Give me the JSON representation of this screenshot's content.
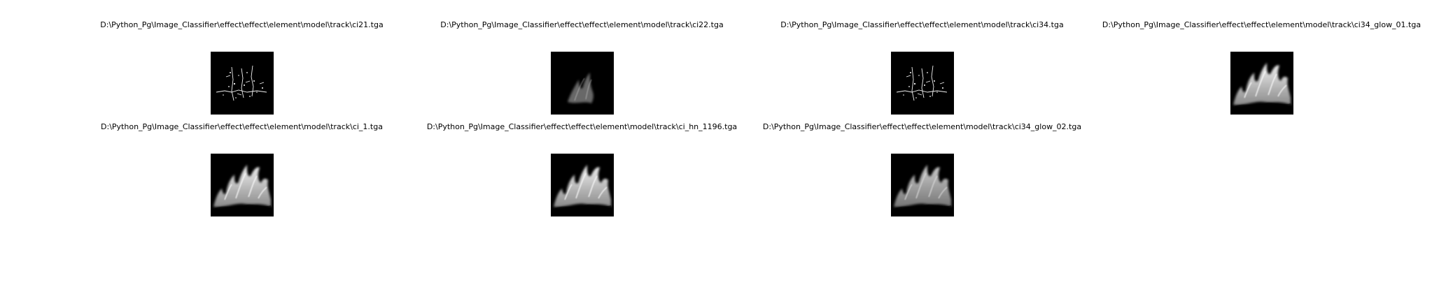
{
  "figure": {
    "panels": [
      {
        "title": "D:\\Python_Pg\\Image_Classifier\\effect\\effect\\element\\model\\track\\ci21.tga",
        "image": "sparse-streak-texture"
      },
      {
        "title": "D:\\Python_Pg\\Image_Classifier\\effect\\effect\\element\\model\\track\\ci22.tga",
        "image": "faint-flame-texture"
      },
      {
        "title": "D:\\Python_Pg\\Image_Classifier\\effect\\effect\\element\\model\\track\\ci34.tga",
        "image": "sparse-streak-texture"
      },
      {
        "title": "D:\\Python_Pg\\Image_Classifier\\effect\\effect\\element\\model\\track\\ci34_glow_01.tga",
        "image": "flame-glow-texture"
      },
      {
        "title": "D:\\Python_Pg\\Image_Classifier\\effect\\effect\\element\\model\\track\\ci_1.tga",
        "image": "flame-glow-texture"
      },
      {
        "title": "D:\\Python_Pg\\Image_Classifier\\effect\\effect\\element\\model\\track\\ci_hn_1196.tga",
        "image": "flame-glow-texture"
      },
      {
        "title": "D:\\Python_Pg\\Image_Classifier\\effect\\effect\\element\\model\\track\\ci34_glow_02.tga",
        "image": "flame-glow-texture"
      }
    ]
  }
}
